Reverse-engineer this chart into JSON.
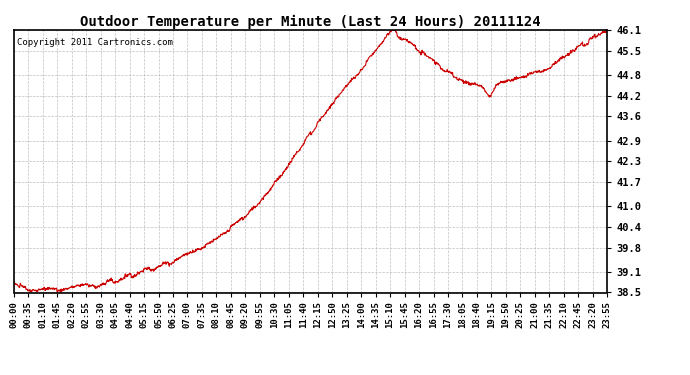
{
  "title": "Outdoor Temperature per Minute (Last 24 Hours) 20111124",
  "copyright_text": "Copyright 2011 Cartronics.com",
  "line_color": "#cc0000",
  "background_color": "#ffffff",
  "plot_bg_color": "#ffffff",
  "grid_color": "#b0b0b0",
  "yticks": [
    38.5,
    39.1,
    39.8,
    40.4,
    41.0,
    41.7,
    42.3,
    42.9,
    43.6,
    44.2,
    44.8,
    45.5,
    46.1
  ],
  "ylim": [
    38.5,
    46.1
  ],
  "xtick_labels": [
    "00:00",
    "00:35",
    "01:10",
    "01:45",
    "02:20",
    "02:55",
    "03:30",
    "04:05",
    "04:40",
    "05:15",
    "05:50",
    "06:25",
    "07:00",
    "07:35",
    "08:10",
    "08:45",
    "09:20",
    "09:55",
    "10:30",
    "11:05",
    "11:40",
    "12:15",
    "12:50",
    "13:25",
    "14:00",
    "14:35",
    "15:10",
    "15:45",
    "16:20",
    "16:55",
    "17:30",
    "18:05",
    "18:40",
    "19:15",
    "19:50",
    "20:25",
    "21:00",
    "21:35",
    "22:10",
    "22:45",
    "23:20",
    "23:55"
  ],
  "num_points": 1440,
  "figsize": [
    6.9,
    3.75
  ],
  "dpi": 100
}
